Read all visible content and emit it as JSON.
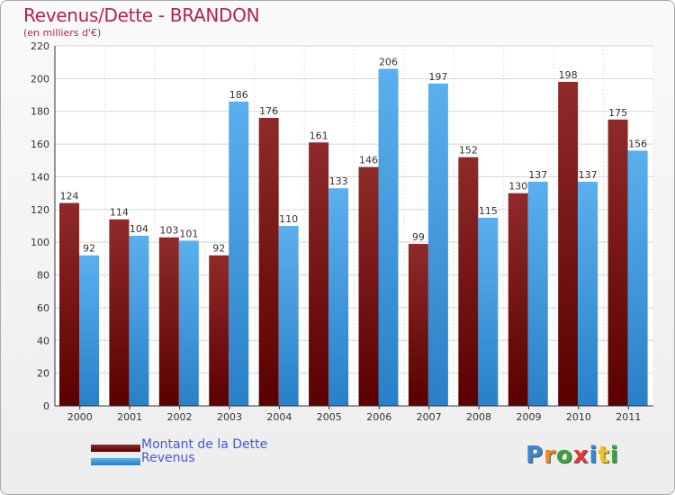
{
  "header": {
    "title": "Revenus/Dette - BRANDON",
    "subtitle": "(en milliers d'€)"
  },
  "colors": {
    "dette": "#7a1010",
    "revenus": "#3f9fe0"
  },
  "chart_data": {
    "type": "bar",
    "categories": [
      "2000",
      "2001",
      "2002",
      "2003",
      "2004",
      "2005",
      "2006",
      "2007",
      "2008",
      "2009",
      "2010",
      "2011"
    ],
    "series": [
      {
        "name": "Montant de la Dette",
        "values": [
          124,
          114,
          103,
          92,
          176,
          161,
          146,
          99,
          152,
          130,
          198,
          175
        ]
      },
      {
        "name": "Revenus",
        "values": [
          92,
          104,
          101,
          186,
          110,
          133,
          206,
          197,
          115,
          137,
          137,
          156
        ]
      }
    ],
    "ylim": [
      0,
      220
    ],
    "yticks": [
      0,
      20,
      40,
      60,
      80,
      100,
      120,
      140,
      160,
      180,
      200,
      220
    ],
    "grid": true,
    "legend": "bottom-left"
  },
  "legend": {
    "items": [
      {
        "label": "Montant de la Dette"
      },
      {
        "label": "Revenus"
      }
    ]
  },
  "logo": {
    "letters": [
      "P",
      "r",
      "o",
      "x",
      "i",
      "t",
      "i"
    ],
    "colors": [
      "#3a86d4",
      "#f08a1d",
      "#3aa63a",
      "#e23a3a",
      "#3a86d4",
      "#f0c21d",
      "#3aa63a"
    ]
  }
}
